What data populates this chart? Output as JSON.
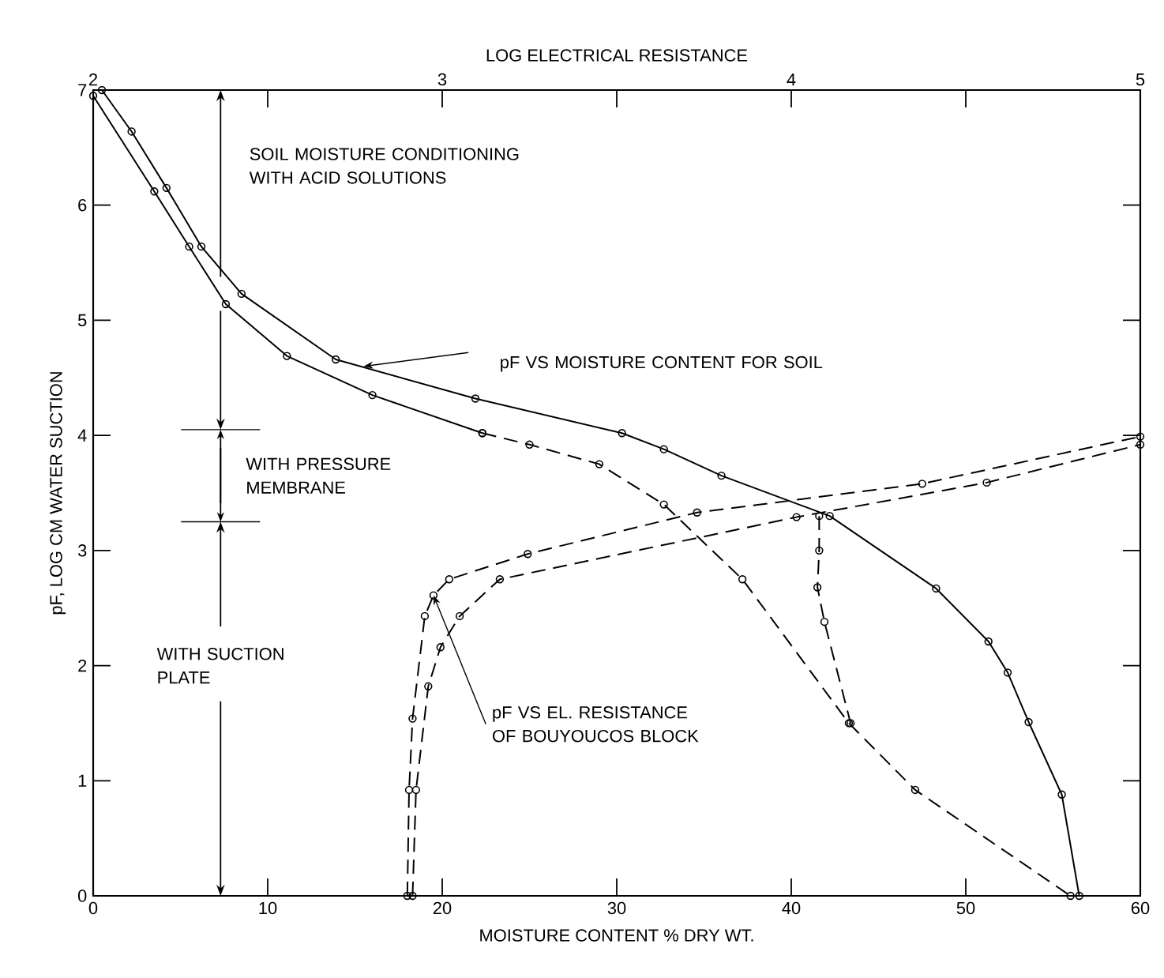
{
  "chart_data": {
    "type": "line",
    "xlabel": "MOISTURE CONTENT % DRY WT.",
    "ylabel": "pF, LOG CM WATER SUCTION",
    "x2label": "LOG ELECTRICAL RESISTANCE",
    "xlim": [
      0,
      60
    ],
    "xticks": [
      0,
      10,
      20,
      30,
      40,
      50,
      60
    ],
    "ylim": [
      0,
      7
    ],
    "yticks": [
      0,
      1,
      2,
      3,
      4,
      5,
      6,
      7
    ],
    "x2lim": [
      2,
      5
    ],
    "x2ticks": [
      2,
      {
        "value": 2.5,
        "label": null
      },
      3,
      {
        "value": 3.5,
        "label": null
      },
      4,
      {
        "value": 4.5,
        "label": null
      },
      5
    ],
    "series": [
      {
        "color": "#000000",
        "line_style": "solid",
        "marker": "circle",
        "x": [
          0.5,
          2.2,
          4.2,
          6.2,
          8.5,
          13.9,
          21.9,
          30.3,
          32.7,
          36,
          42.2,
          48.3,
          51.3,
          52.4,
          53.6,
          55.5,
          56.5
        ],
        "values": [
          7.0,
          6.64,
          6.15,
          5.64,
          5.23,
          4.66,
          4.32,
          4.02,
          3.88,
          3.65,
          3.3,
          2.67,
          2.21,
          1.94,
          1.51,
          0.88,
          0
        ]
      },
      {
        "color": "#000000",
        "line_style": "solid",
        "marker": "circle",
        "x": [
          0,
          3.5,
          5.5,
          7.6,
          11.1,
          16,
          22.3
        ],
        "values": [
          6.95,
          6.12,
          5.64,
          5.14,
          4.69,
          4.35,
          4.02
        ]
      },
      {
        "color": "#000000",
        "line_style": "dashed",
        "marker": "circle",
        "x": [
          22.3,
          25,
          29,
          32.7,
          37.2,
          43.3,
          47.1,
          56.0
        ],
        "values": [
          4.02,
          3.92,
          3.75,
          3.4,
          2.75,
          1.5,
          0.92,
          0
        ]
      },
      {
        "color": "#000000",
        "line_style": "dashed",
        "marker": "circle",
        "x": [
          18.0,
          18.1,
          18.3,
          19.0,
          19.5,
          20.4,
          24.9,
          34.6,
          47.5,
          60
        ],
        "values": [
          0,
          0.92,
          1.54,
          2.43,
          2.61,
          2.75,
          2.97,
          3.33,
          3.58,
          3.99
        ]
      },
      {
        "color": "#000000",
        "line_style": "dashed",
        "marker": "circle",
        "x": [
          18.3,
          18.5,
          19.2,
          19.9,
          21.0,
          23.3,
          40.3,
          51.2,
          60
        ],
        "values": [
          0,
          0.92,
          1.82,
          2.16,
          2.43,
          2.75,
          3.29,
          3.59,
          3.92
        ]
      },
      {
        "color": "#000000",
        "line_style": "dashed",
        "marker": "circle",
        "x": [
          41.6,
          41.6,
          41.5,
          41.9,
          43.4
        ],
        "values": [
          3.3,
          3.0,
          2.68,
          2.38,
          1.5
        ]
      }
    ],
    "annotations": [
      "pF VS MOISTURE CONTENT FOR SOIL",
      {
        "text": "pF VS EL. RESISTANCE OF BOUYOUCOS BLOCK",
        "x": 19.5,
        "y": 2.61
      },
      "SOIL MOISTURE CONDITIONING WITH ACID SOLUTIONS",
      "WITH PRESSURE MEMBRANE",
      "WITH SUCTION PLATE"
    ]
  }
}
